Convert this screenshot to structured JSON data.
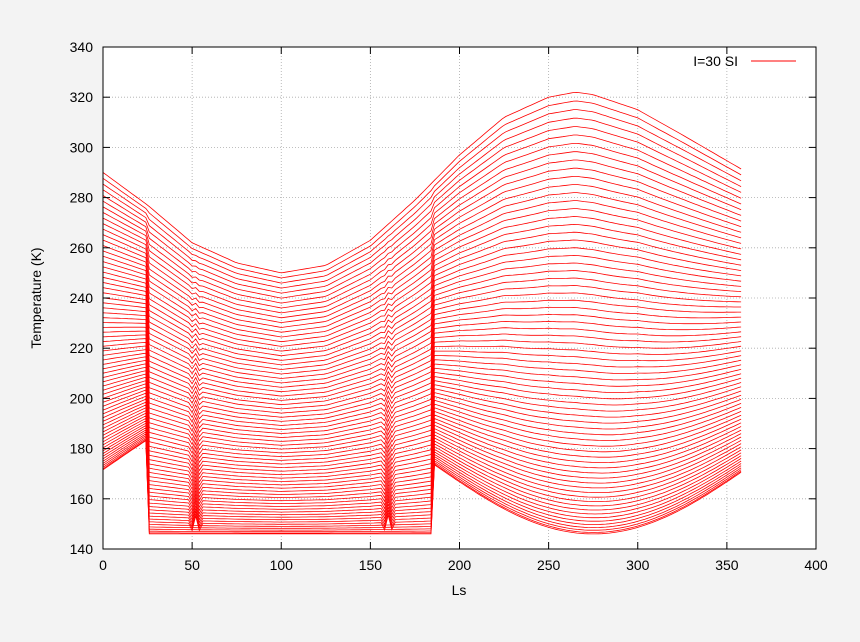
{
  "chart_data": {
    "type": "line",
    "title": "",
    "xlabel": "Ls",
    "ylabel": "Temperature (K)",
    "xlim": [
      0,
      400
    ],
    "ylim": [
      140,
      340
    ],
    "xticks": [
      0,
      50,
      100,
      150,
      200,
      250,
      300,
      350,
      400
    ],
    "yticks": [
      140,
      160,
      180,
      200,
      220,
      240,
      260,
      280,
      300,
      320,
      340
    ],
    "grid": true,
    "legend_position": "top-right",
    "legend_label": "I=30 SI",
    "line_color": "#ff0000",
    "series_description": "Family of roughly 70 temperature curves over Ls 0-359; upper curves sinusoidal with minimum near Ls=100 and maximum near Ls=265, lower curves clamped at the CO2 frost floor (~146 K).",
    "curve_count": 70,
    "envelope": {
      "upper": {
        "x": [
          0,
          25,
          50,
          75,
          100,
          125,
          150,
          175,
          200,
          225,
          250,
          265,
          275,
          300,
          325,
          359
        ],
        "y": [
          290,
          277,
          262,
          254,
          250,
          253,
          263,
          279,
          297,
          312,
          320,
          322,
          321,
          315,
          305,
          291
        ]
      },
      "lower": {
        "x": [
          0,
          25,
          185,
          200,
          225,
          250,
          275,
          300,
          325,
          359
        ],
        "y": [
          153,
          146,
          146,
          152,
          161,
          170,
          174,
          171,
          163,
          153
        ]
      }
    }
  }
}
